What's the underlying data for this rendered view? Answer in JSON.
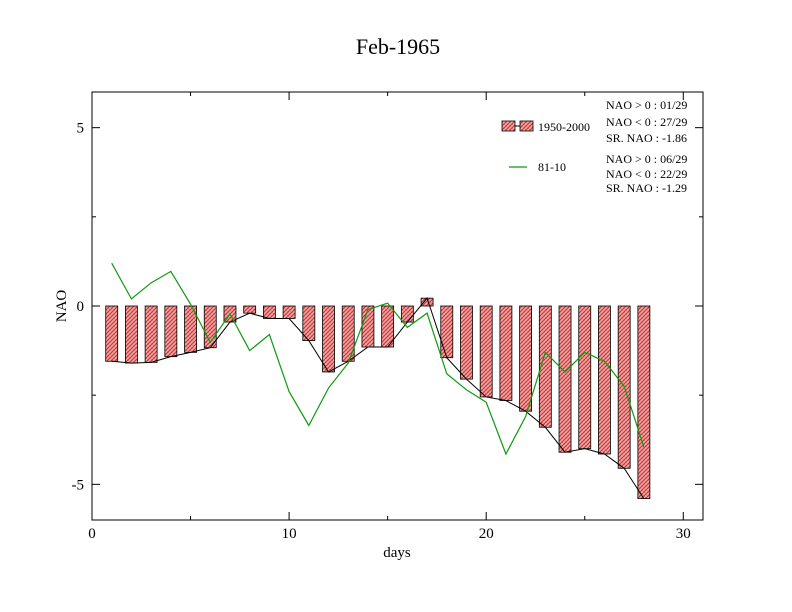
{
  "chart_data": {
    "type": "bar",
    "title": "Feb-1965",
    "xlabel": "days",
    "ylabel": "NAO",
    "xlim": [
      0,
      31
    ],
    "ylim": [
      -6,
      6
    ],
    "xticks": [
      0,
      10,
      20,
      30
    ],
    "yticks": [
      -5,
      0,
      5
    ],
    "xtick_labels": [
      "0",
      "10",
      "20",
      "30"
    ],
    "ytick_labels": [
      "-5",
      "0",
      "5"
    ],
    "grid": false,
    "legend_position": "top-right",
    "x": [
      1,
      2,
      3,
      4,
      5,
      6,
      7,
      8,
      9,
      10,
      11,
      12,
      13,
      14,
      15,
      16,
      17,
      18,
      19,
      20,
      21,
      22,
      23,
      24,
      25,
      26,
      27,
      28
    ],
    "series": [
      {
        "name": "1950-2000",
        "kind": "bar",
        "color": "#e36b6b",
        "values": [
          -1.55,
          -1.6,
          -1.58,
          -1.42,
          -1.3,
          -1.17,
          -0.45,
          -0.2,
          -0.35,
          -0.35,
          -0.97,
          -1.85,
          -1.55,
          -1.15,
          -1.15,
          -0.45,
          0.22,
          -1.45,
          -2.05,
          -2.55,
          -2.65,
          -2.95,
          -3.4,
          -4.1,
          -4.0,
          -4.15,
          -4.55,
          -5.4
        ]
      },
      {
        "name": "81-10",
        "kind": "line",
        "color": "#0f9a0f",
        "values": [
          1.2,
          0.2,
          0.65,
          0.97,
          0.05,
          -1.02,
          -0.22,
          -1.25,
          -0.8,
          -2.4,
          -3.35,
          -2.3,
          -1.6,
          -0.1,
          0.08,
          -0.6,
          -0.2,
          -1.9,
          -2.35,
          -2.7,
          -4.15,
          -3.1,
          -1.3,
          -1.85,
          -1.3,
          -1.55,
          -2.25,
          -3.95
        ]
      }
    ],
    "legend_stats": [
      [
        "NAO > 0 : 01/29",
        "NAO < 0 : 27/29",
        "SR. NAO : -1.86"
      ],
      [
        "NAO > 0 : 06/29",
        "NAO < 0 : 22/29",
        "SR. NAO : -1.29"
      ]
    ]
  }
}
